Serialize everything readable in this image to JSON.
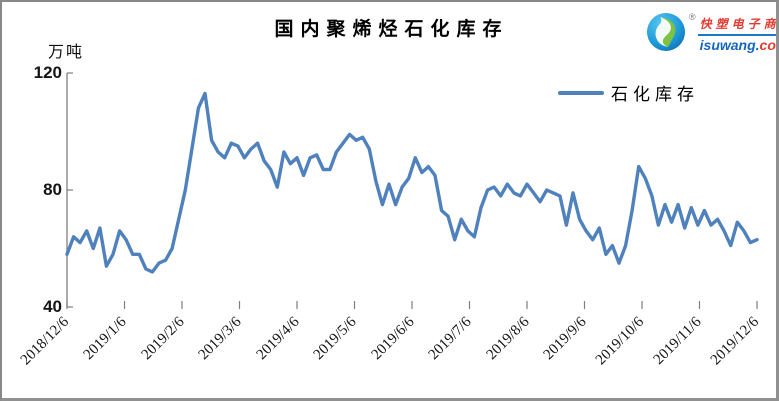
{
  "header": {
    "unit_label": "万吨"
  },
  "logo": {
    "brand": "快塑电子商",
    "domain_main": "isuwang.",
    "domain_accent": "co",
    "registered_mark": "®"
  },
  "chart_data": {
    "type": "line",
    "title": "国内聚烯烃石化库存",
    "unit": "万吨",
    "xlabel": "",
    "ylabel": "万吨",
    "ylim": [
      40,
      120
    ],
    "yticks": [
      40,
      80,
      120
    ],
    "grid": false,
    "tick_label_rotation_deg": 45,
    "legend_position": "top-right-inside",
    "x_tick_labels": [
      "2018/12/6",
      "2019/1/6",
      "2019/2/6",
      "2019/3/6",
      "2019/4/6",
      "2019/5/6",
      "2019/6/6",
      "2019/7/6",
      "2019/8/6",
      "2019/9/6",
      "2019/10/6",
      "2019/11/6",
      "2019/12/6"
    ],
    "series": [
      {
        "name": "石化库存",
        "color": "#4F81BD",
        "values": [
          58,
          64,
          62,
          66,
          60,
          67,
          54,
          58,
          66,
          63,
          58,
          58,
          53,
          52,
          55,
          56,
          60,
          70,
          80,
          94,
          108,
          113,
          97,
          93,
          91,
          96,
          95,
          91,
          94,
          96,
          90,
          87,
          81,
          93,
          89,
          91,
          85,
          91,
          92,
          87,
          87,
          93,
          96,
          99,
          97,
          98,
          94,
          83,
          75,
          82,
          75,
          81,
          84,
          91,
          86,
          88,
          85,
          73,
          71,
          63,
          70,
          66,
          64,
          74,
          80,
          81,
          78,
          82,
          79,
          78,
          82,
          79,
          76,
          80,
          79,
          78,
          68,
          79,
          70,
          66,
          63,
          67,
          58,
          61,
          55,
          61,
          73,
          88,
          84,
          78,
          68,
          75,
          69,
          75,
          67,
          74,
          68,
          73,
          68,
          70,
          66,
          61,
          69,
          66,
          62,
          63
        ]
      }
    ]
  }
}
